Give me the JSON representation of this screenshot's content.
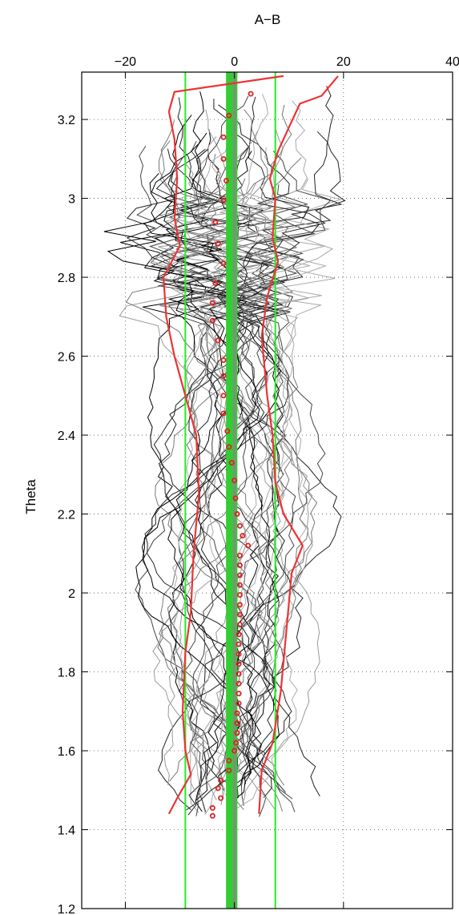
{
  "chart_data": {
    "type": "line",
    "title": "A−B",
    "xlabel": "",
    "ylabel": "Theta",
    "x_axis_position": "top",
    "xlim": [
      -28,
      40
    ],
    "ylim": [
      1.2,
      3.32
    ],
    "grid": true,
    "x_ticks": [
      {
        "value": -20,
        "label": "−20"
      },
      {
        "value": 0,
        "label": "0"
      },
      {
        "value": 20,
        "label": "20"
      },
      {
        "value": 40,
        "label": "40"
      }
    ],
    "y_ticks": [
      {
        "value": 1.2,
        "label": "1.2"
      },
      {
        "value": 1.4,
        "label": "1.4"
      },
      {
        "value": 1.6,
        "label": "1.6"
      },
      {
        "value": 1.8,
        "label": "1.8"
      },
      {
        "value": 2.0,
        "label": "2"
      },
      {
        "value": 2.2,
        "label": "2.2"
      },
      {
        "value": 2.4,
        "label": "2.4"
      },
      {
        "value": 2.6,
        "label": "2.6"
      },
      {
        "value": 2.8,
        "label": "2.8"
      },
      {
        "value": 3.0,
        "label": "3"
      },
      {
        "value": 3.2,
        "label": "3.2"
      }
    ],
    "mean_band": {
      "x": -0.5,
      "width": 1.2,
      "color": "#33cc33"
    },
    "zero_line": {
      "x": 0,
      "color": "#888888"
    },
    "std_lines": {
      "x": [
        -9,
        7.5
      ],
      "color": "#22ee22"
    },
    "envelope_color": "#ee3333",
    "envelope_low": [
      [
        -12,
        1.44
      ],
      [
        -10.5,
        1.48
      ],
      [
        -8,
        1.54
      ],
      [
        -9,
        1.6
      ],
      [
        -9.5,
        1.7
      ],
      [
        -9,
        1.85
      ],
      [
        -8,
        1.95
      ],
      [
        -7.5,
        2.1
      ],
      [
        -6.5,
        2.25
      ],
      [
        -7,
        2.4
      ],
      [
        -9,
        2.5
      ],
      [
        -11,
        2.6
      ],
      [
        -12.5,
        2.7
      ],
      [
        -13,
        2.8
      ],
      [
        -10,
        2.88
      ],
      [
        -11,
        2.95
      ],
      [
        -10.5,
        3.05
      ],
      [
        -11,
        3.15
      ],
      [
        -12,
        3.22
      ],
      [
        -11,
        3.27
      ],
      [
        9,
        3.31
      ]
    ],
    "envelope_high": [
      [
        4.5,
        1.44
      ],
      [
        5,
        1.55
      ],
      [
        7,
        1.62
      ],
      [
        8.5,
        1.75
      ],
      [
        9.5,
        1.9
      ],
      [
        10.5,
        2.05
      ],
      [
        12.5,
        2.12
      ],
      [
        9,
        2.2
      ],
      [
        7.5,
        2.28
      ],
      [
        7,
        2.4
      ],
      [
        6,
        2.5
      ],
      [
        5,
        2.65
      ],
      [
        6,
        2.75
      ],
      [
        8,
        2.84
      ],
      [
        7,
        2.9
      ],
      [
        7.5,
        3.0
      ],
      [
        6.5,
        3.05
      ],
      [
        8,
        3.12
      ],
      [
        10,
        3.18
      ],
      [
        12,
        3.24
      ],
      [
        16,
        3.26
      ],
      [
        19,
        3.31
      ]
    ],
    "points_color": "#dd2222",
    "points": [
      [
        -4,
        1.435
      ],
      [
        -4,
        1.455
      ],
      [
        -2.5,
        1.48
      ],
      [
        -3,
        1.505
      ],
      [
        -2.5,
        1.525
      ],
      [
        -1,
        1.55
      ],
      [
        -1,
        1.575
      ],
      [
        0,
        1.6
      ],
      [
        0.3,
        1.62
      ],
      [
        0.5,
        1.645
      ],
      [
        0.5,
        1.67
      ],
      [
        0.5,
        1.695
      ],
      [
        0.8,
        1.72
      ],
      [
        0.8,
        1.745
      ],
      [
        0.8,
        1.77
      ],
      [
        0.8,
        1.795
      ],
      [
        0.8,
        1.82
      ],
      [
        0.8,
        1.845
      ],
      [
        0.8,
        1.87
      ],
      [
        0.8,
        1.895
      ],
      [
        1,
        1.92
      ],
      [
        1,
        1.945
      ],
      [
        1,
        1.97
      ],
      [
        1,
        1.995
      ],
      [
        1,
        2.02
      ],
      [
        1,
        2.045
      ],
      [
        1,
        2.07
      ],
      [
        1,
        2.095
      ],
      [
        2.5,
        2.12
      ],
      [
        1.5,
        2.145
      ],
      [
        1,
        2.17
      ],
      [
        0.5,
        2.2
      ],
      [
        0.2,
        2.24
      ],
      [
        0,
        2.285
      ],
      [
        -0.5,
        2.33
      ],
      [
        -1,
        2.37
      ],
      [
        -1.3,
        2.41
      ],
      [
        -2,
        2.455
      ],
      [
        -2,
        2.5
      ],
      [
        -2,
        2.55
      ],
      [
        -2,
        2.59
      ],
      [
        -3,
        2.64
      ],
      [
        -4,
        2.69
      ],
      [
        -4,
        2.735
      ],
      [
        -3.5,
        2.785
      ],
      [
        -2,
        2.835
      ],
      [
        -3,
        2.885
      ],
      [
        -3.5,
        2.94
      ],
      [
        -2,
        2.995
      ],
      [
        -1.5,
        3.045
      ],
      [
        -2,
        3.1
      ],
      [
        -2,
        3.155
      ],
      [
        -1,
        3.21
      ],
      [
        3,
        3.265
      ]
    ]
  }
}
